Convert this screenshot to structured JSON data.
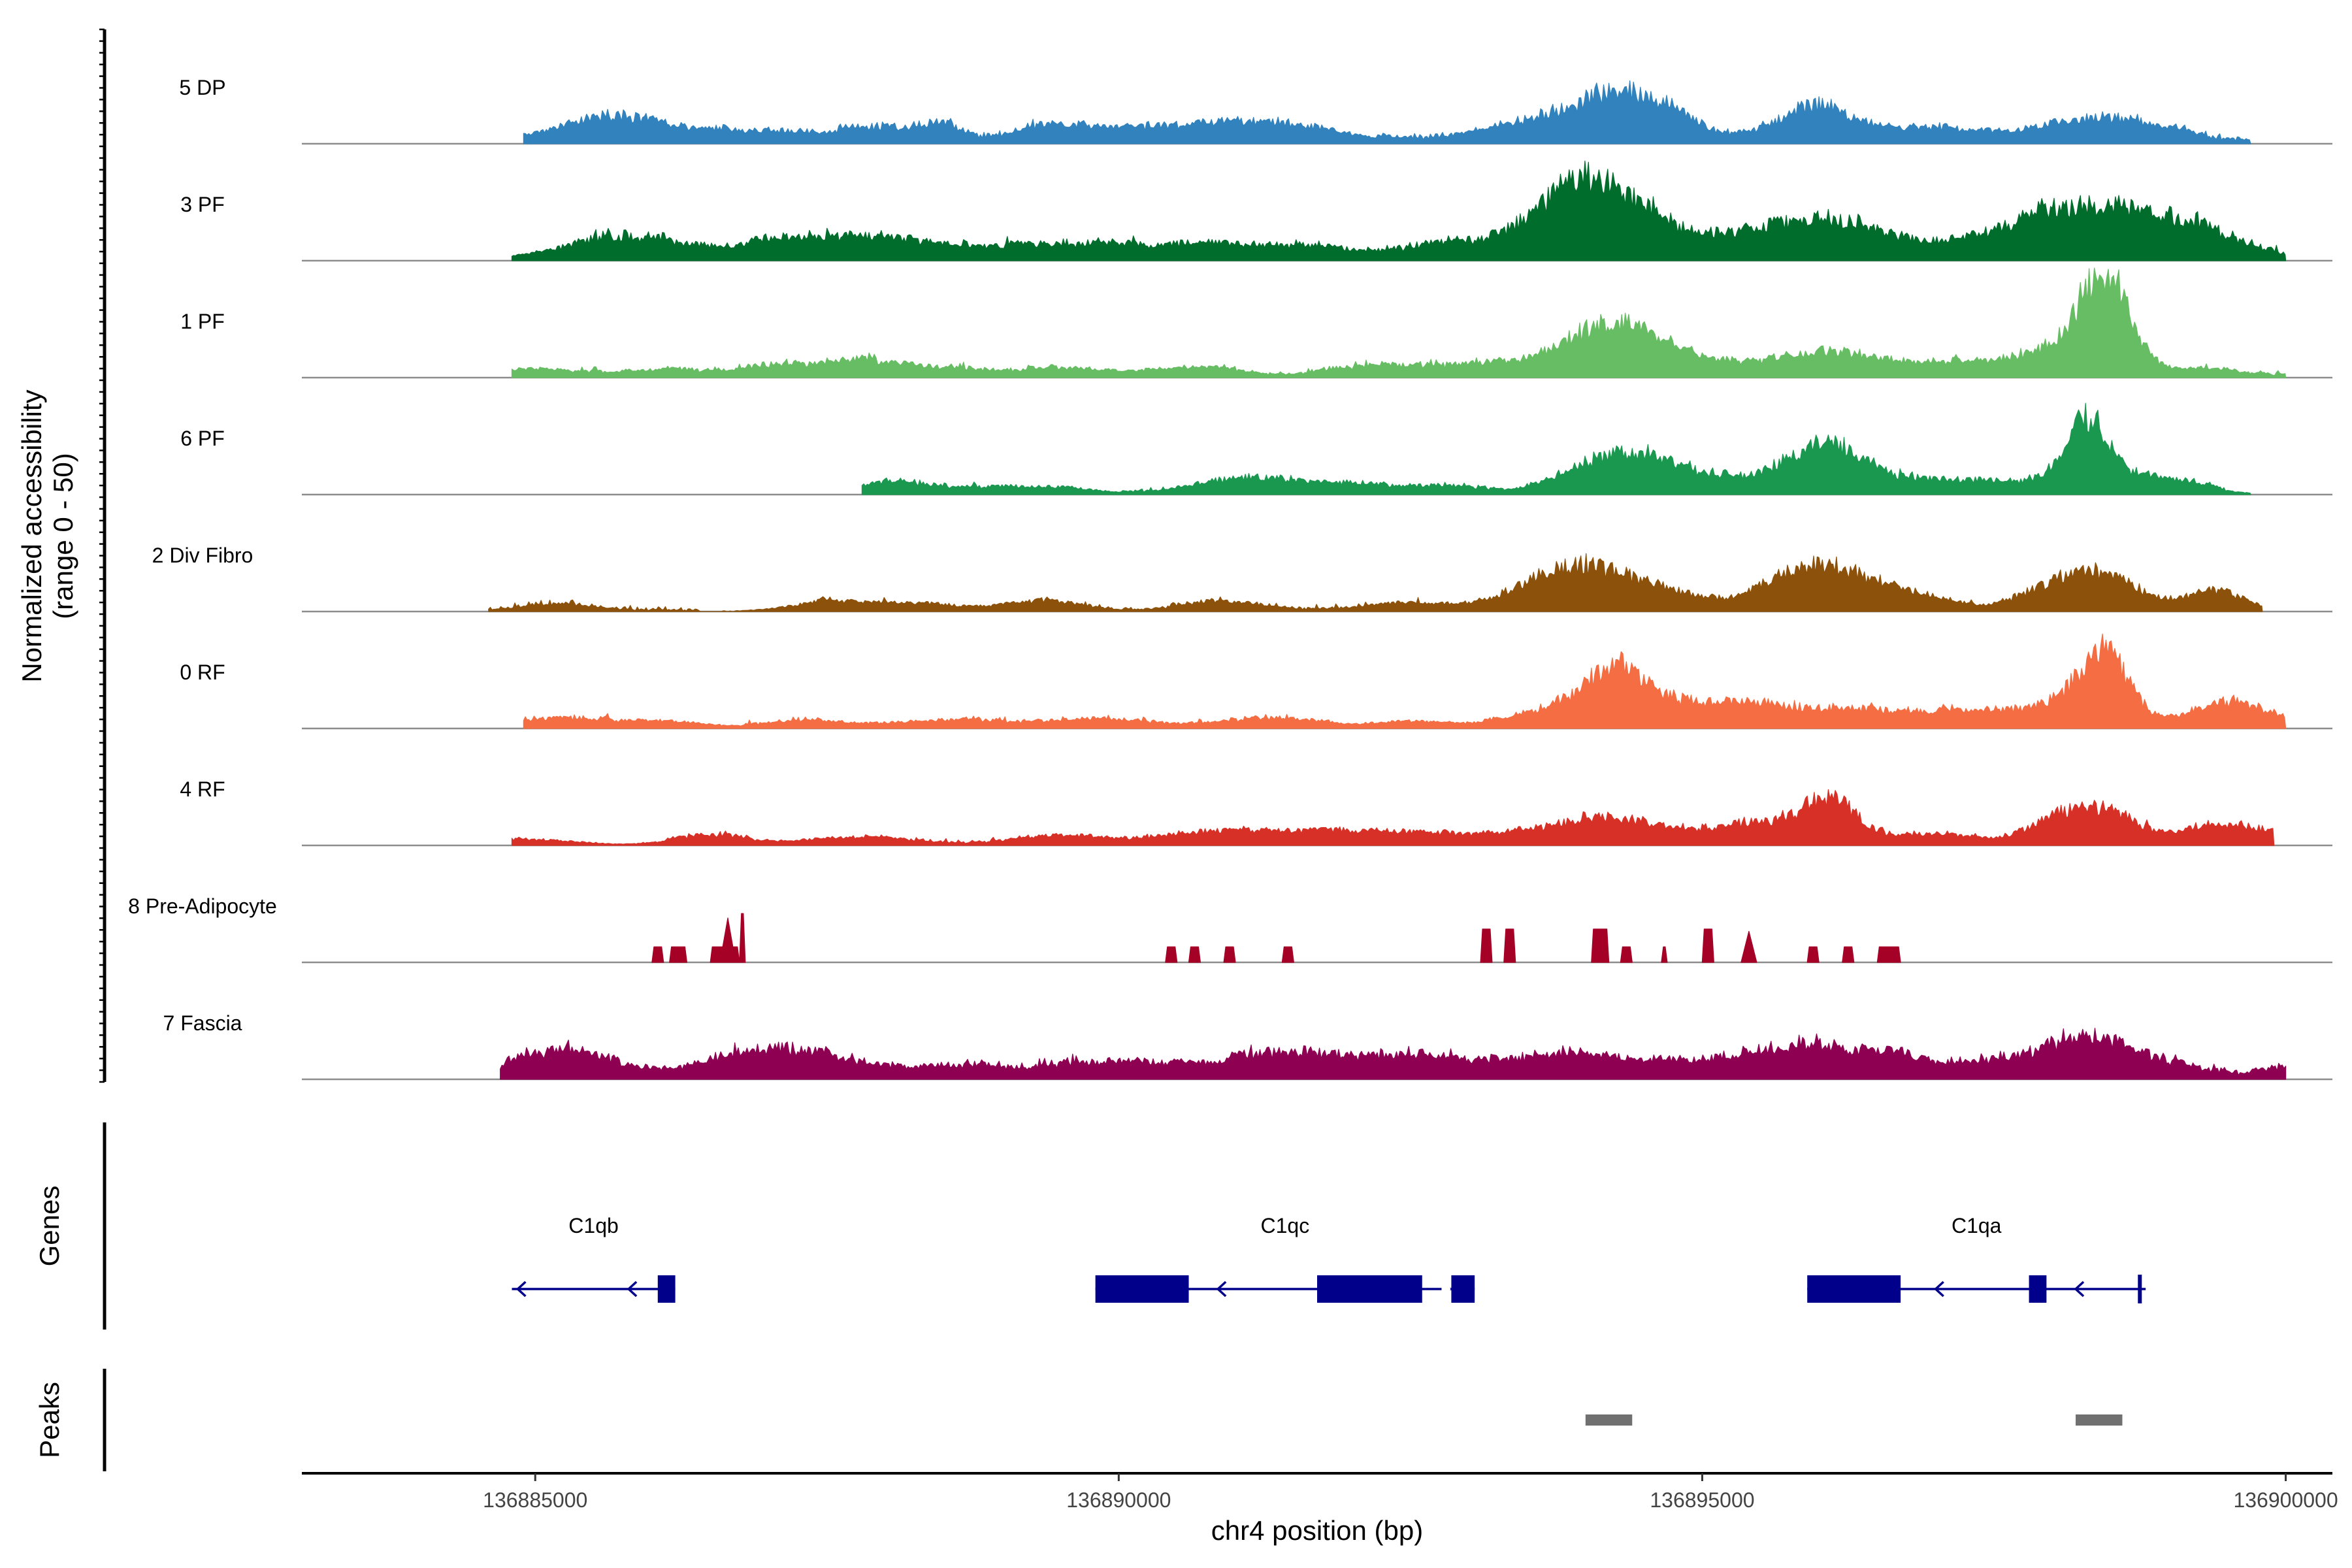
{
  "chart_data": {
    "type": "area",
    "title": "",
    "xlabel": "chr4 position (bp)",
    "ylabel": "Normalized accessibility",
    "ylabel_range": "(range 0 - 50)",
    "xlim": [
      136883000,
      136900400
    ],
    "x_ticks": [
      136885000,
      136890000,
      136895000,
      136900000
    ],
    "tick_labels": [
      "136885000",
      "136890000",
      "136895000",
      "136900000"
    ],
    "ylim": [
      0,
      50
    ],
    "bin_size_bp": 100,
    "tracks": [
      {
        "name": "5 DP",
        "color": "#3182bd",
        "start": 136884900,
        "end": 136899700,
        "baseline": 1.2,
        "noise": 2.2,
        "peaks": [
          [
            136885200,
            1.3,
            4.5
          ],
          [
            136885600,
            0.8,
            7
          ],
          [
            136886000,
            0.9,
            5.5
          ],
          [
            136886700,
            0.9,
            4.5
          ],
          [
            136887300,
            0.9,
            4.5
          ],
          [
            136888000,
            0.8,
            6
          ],
          [
            136888500,
            0.5,
            7
          ],
          [
            136889300,
            0.7,
            5.5
          ],
          [
            136889800,
            0.9,
            5
          ],
          [
            136890600,
            1.2,
            6
          ],
          [
            136891200,
            1.0,
            5.5
          ],
          [
            136891700,
            1.2,
            5
          ],
          [
            136893300,
            1.2,
            4.5
          ],
          [
            136894100,
            1.3,
            11
          ],
          [
            136894400,
            1.1,
            10
          ],
          [
            136894700,
            0.9,
            4.5
          ],
          [
            136895900,
            0.9,
            4.5
          ],
          [
            136896000,
            0.9,
            13
          ],
          [
            136896800,
            0.9,
            4
          ],
          [
            136897300,
            0.9,
            4.5
          ],
          [
            136898300,
            1.2,
            11
          ],
          [
            136899000,
            0.8,
            3.5
          ]
        ]
      },
      {
        "name": "3 PF",
        "color": "#006d2c",
        "start": 136884800,
        "end": 136900000,
        "baseline": 1.5,
        "noise": 2.6,
        "peaks": [
          [
            136885500,
            1.4,
            5.5
          ],
          [
            136886000,
            1.2,
            5.5
          ],
          [
            136887000,
            1.2,
            5
          ],
          [
            136887600,
            1.5,
            5.5
          ],
          [
            136888100,
            1.0,
            5
          ],
          [
            136889000,
            1.0,
            6
          ],
          [
            136889900,
            1.0,
            6
          ],
          [
            136890700,
            1.0,
            6.5
          ],
          [
            136891500,
            1.2,
            6
          ],
          [
            136892800,
            1.0,
            6
          ],
          [
            136893500,
            1.0,
            5.5
          ],
          [
            136894000,
            1.0,
            25
          ],
          [
            136894400,
            1.5,
            11
          ],
          [
            136895100,
            1.5,
            5.5
          ],
          [
            136895600,
            0.9,
            5
          ],
          [
            136896100,
            1.2,
            13
          ],
          [
            136896800,
            1.2,
            5.5
          ],
          [
            136897600,
            1.0,
            5
          ],
          [
            136898400,
            1.7,
            23
          ],
          [
            136899300,
            1.0,
            7
          ]
        ]
      },
      {
        "name": "1 PF",
        "color": "#66bd63",
        "start": 136884800,
        "end": 136900000,
        "baseline": 1.0,
        "noise": 1.8,
        "peaks": [
          [
            136885000,
            0.8,
            3
          ],
          [
            136886000,
            1.0,
            3.5
          ],
          [
            136887100,
            0.9,
            4.5
          ],
          [
            136887800,
            0.9,
            5.5
          ],
          [
            136888400,
            1.2,
            4
          ],
          [
            136889600,
            1.0,
            4
          ],
          [
            136890600,
            1.0,
            4.5
          ],
          [
            136892200,
            1.0,
            4.5
          ],
          [
            136893000,
            1.0,
            4
          ],
          [
            136893600,
            1.0,
            4.5
          ],
          [
            136894100,
            0.9,
            11
          ],
          [
            136894400,
            1.0,
            14
          ],
          [
            136894900,
            1.0,
            5.5
          ],
          [
            136895800,
            1.2,
            6
          ],
          [
            136896200,
            1.0,
            7
          ],
          [
            136896900,
            1.0,
            5
          ],
          [
            136897600,
            1.0,
            4.5
          ],
          [
            136898100,
            1.0,
            8
          ],
          [
            136898450,
            0.6,
            42
          ],
          [
            136899300,
            0.9,
            3
          ]
        ]
      },
      {
        "name": "6 PF",
        "color": "#1a9850",
        "start": 136887800,
        "end": 136899700,
        "baseline": 0.7,
        "noise": 1.5,
        "peaks": [
          [
            136888050,
            0.8,
            5.5
          ],
          [
            136888900,
            0.8,
            3
          ],
          [
            136889500,
            0.9,
            3
          ],
          [
            136890900,
            1.0,
            4
          ],
          [
            136891300,
            1.0,
            4
          ],
          [
            136892000,
            1.0,
            4
          ],
          [
            136892800,
            0.8,
            3
          ],
          [
            136894200,
            1.2,
            15
          ],
          [
            136894600,
            0.9,
            5
          ],
          [
            136895200,
            1.2,
            5
          ],
          [
            136895900,
            1.0,
            9
          ],
          [
            136896100,
            0.8,
            14
          ],
          [
            136896700,
            0.9,
            5
          ],
          [
            136897300,
            0.9,
            4
          ],
          [
            136898300,
            0.5,
            26
          ],
          [
            136898300,
            1.5,
            7
          ],
          [
            136899000,
            0.9,
            4
          ]
        ]
      },
      {
        "name": "2 Div Fibro",
        "color": "#8c510a",
        "start": 136884600,
        "end": 136899800,
        "baseline": 0.7,
        "noise": 1.8,
        "peaks": [
          [
            136885200,
            0.8,
            3
          ],
          [
            136887500,
            0.9,
            4
          ],
          [
            136888300,
            0.9,
            3.5
          ],
          [
            136889300,
            0.9,
            4.5
          ],
          [
            136890900,
            0.9,
            4
          ],
          [
            136892600,
            1.2,
            3.5
          ],
          [
            136893600,
            0.9,
            8
          ],
          [
            136894100,
            1.2,
            16
          ],
          [
            136894800,
            0.9,
            5
          ],
          [
            136895700,
            0.9,
            6
          ],
          [
            136896100,
            1.2,
            16
          ],
          [
            136896900,
            0.9,
            4.5
          ],
          [
            136898000,
            1.0,
            6
          ],
          [
            136898400,
            1.0,
            14
          ],
          [
            136899400,
            0.7,
            9
          ]
        ]
      },
      {
        "name": "0 RF",
        "color": "#f46d43",
        "start": 136884900,
        "end": 136900000,
        "baseline": 1.0,
        "noise": 1.4,
        "peaks": [
          [
            136885200,
            1.2,
            3.5
          ],
          [
            136886100,
            1.0,
            3
          ],
          [
            136887400,
            1.0,
            3
          ],
          [
            136888500,
            1.2,
            3.5
          ],
          [
            136889800,
            1.2,
            3.5
          ],
          [
            136891300,
            1.2,
            3.5
          ],
          [
            136892500,
            1.0,
            3
          ],
          [
            136893500,
            1.0,
            3.5
          ],
          [
            136894200,
            1.0,
            18
          ],
          [
            136894300,
            0.5,
            10
          ],
          [
            136894900,
            1.0,
            7
          ],
          [
            136895400,
            0.9,
            5.5
          ],
          [
            136896100,
            1.4,
            7
          ],
          [
            136896900,
            1.2,
            4
          ],
          [
            136897400,
            1.2,
            4
          ],
          [
            136898100,
            1.0,
            8
          ],
          [
            136898450,
            0.6,
            30
          ],
          [
            136899400,
            0.8,
            10
          ],
          [
            136899800,
            0.7,
            4
          ]
        ]
      },
      {
        "name": "4 RF",
        "color": "#d73027",
        "start": 136884800,
        "end": 136899900,
        "baseline": 0.8,
        "noise": 1.4,
        "peaks": [
          [
            136885000,
            1.0,
            2.5
          ],
          [
            136886500,
            0.9,
            4
          ],
          [
            136887700,
            1.2,
            3.5
          ],
          [
            136889500,
            1.0,
            4
          ],
          [
            136890600,
            1.0,
            4
          ],
          [
            136891300,
            1.0,
            5.5
          ],
          [
            136892000,
            1.0,
            5
          ],
          [
            136892700,
            1.2,
            4
          ],
          [
            136893600,
            1.0,
            5.5
          ],
          [
            136894100,
            0.8,
            8
          ],
          [
            136894600,
            1.0,
            6
          ],
          [
            136895400,
            1.0,
            7
          ],
          [
            136896000,
            1.0,
            7
          ],
          [
            136896100,
            0.6,
            14
          ],
          [
            136897000,
            1.0,
            4
          ],
          [
            136898100,
            1.0,
            7
          ],
          [
            136898400,
            1.0,
            12
          ],
          [
            136899400,
            0.7,
            8
          ],
          [
            136899900,
            0.7,
            5
          ]
        ]
      },
      {
        "name": "8 Pre-Adipocyte",
        "color": "#a50026",
        "start": 136886000,
        "end": 136896800,
        "baseline": 0,
        "noise": 0,
        "blocks": [
          [
            136886000,
            136886100,
            7
          ],
          [
            136886150,
            136886300,
            7
          ],
          [
            136886500,
            136886750,
            7
          ],
          [
            136886750,
            136886800,
            22
          ],
          [
            136890400,
            136890500,
            7
          ],
          [
            136890600,
            136890700,
            7
          ],
          [
            136890900,
            136891000,
            7
          ],
          [
            136891400,
            136891500,
            7
          ],
          [
            136893100,
            136893200,
            15
          ],
          [
            136893300,
            136893400,
            15
          ],
          [
            136894050,
            136894200,
            15
          ],
          [
            136894300,
            136894400,
            7
          ],
          [
            136894650,
            136894700,
            7
          ],
          [
            136895000,
            136895100,
            15
          ],
          [
            136895350,
            136895450,
            7
          ],
          [
            136895900,
            136896000,
            7
          ],
          [
            136896200,
            136896300,
            7
          ],
          [
            136896500,
            136896700,
            7
          ]
        ],
        "spikes": [
          [
            136886650,
            20
          ],
          [
            136895400,
            14
          ]
        ]
      },
      {
        "name": "7 Fascia",
        "color": "#8e0152",
        "start": 136884700,
        "end": 136900000,
        "baseline": 1.8,
        "noise": 2.8,
        "peaks": [
          [
            136884800,
            0.4,
            4
          ],
          [
            136885200,
            0.8,
            10
          ],
          [
            136885700,
            0.9,
            5
          ],
          [
            136886700,
            1.2,
            6
          ],
          [
            136887300,
            1.2,
            9
          ],
          [
            136888500,
            1.1,
            6
          ],
          [
            136889800,
            1.2,
            6
          ],
          [
            136890700,
            1.5,
            6
          ],
          [
            136891500,
            1.1,
            7
          ],
          [
            136892500,
            1.4,
            9
          ],
          [
            136893600,
            1.1,
            6
          ],
          [
            136894200,
            1.2,
            6
          ],
          [
            136894900,
            1.2,
            6
          ],
          [
            136895500,
            0.9,
            8
          ],
          [
            136896100,
            0.8,
            12
          ],
          [
            136896700,
            0.8,
            10
          ],
          [
            136897400,
            0.9,
            5
          ],
          [
            136898100,
            1.0,
            8
          ],
          [
            136898400,
            1.0,
            10
          ],
          [
            136899000,
            1.0,
            4
          ],
          [
            136899900,
            0.4,
            3
          ]
        ]
      }
    ],
    "genes": [
      {
        "name": "C1qb",
        "strand": "-",
        "start": 136884800,
        "end": 136886200,
        "exons": [
          [
            136886050,
            136886200
          ]
        ],
        "arrows": [
          136884850,
          136885800
        ]
      },
      {
        "name": "C1qc",
        "strand": "-",
        "start": 136889800,
        "end": 136893050,
        "exons": [
          [
            136889800,
            136890600
          ],
          [
            136891700,
            136892600
          ],
          [
            136892850,
            136893050
          ]
        ],
        "notch": 136892800,
        "arrows": [
          136890850
        ]
      },
      {
        "name": "C1qa",
        "strand": "-",
        "start": 136895900,
        "end": 136898800,
        "exons": [
          [
            136895900,
            136896700
          ],
          [
            136897800,
            136897950
          ]
        ],
        "tss": 136898750,
        "arrows": [
          136897000,
          136898200
        ]
      }
    ],
    "peaks_track": [
      [
        136894000,
        136894400
      ],
      [
        136898200,
        136898600
      ]
    ],
    "panel_labels": {
      "genes": "Genes",
      "peaks": "Peaks"
    },
    "colors": {
      "gene": "#00008b",
      "peak": "#707070",
      "baseline": "#8c8c8c",
      "axis": "#000000"
    }
  }
}
